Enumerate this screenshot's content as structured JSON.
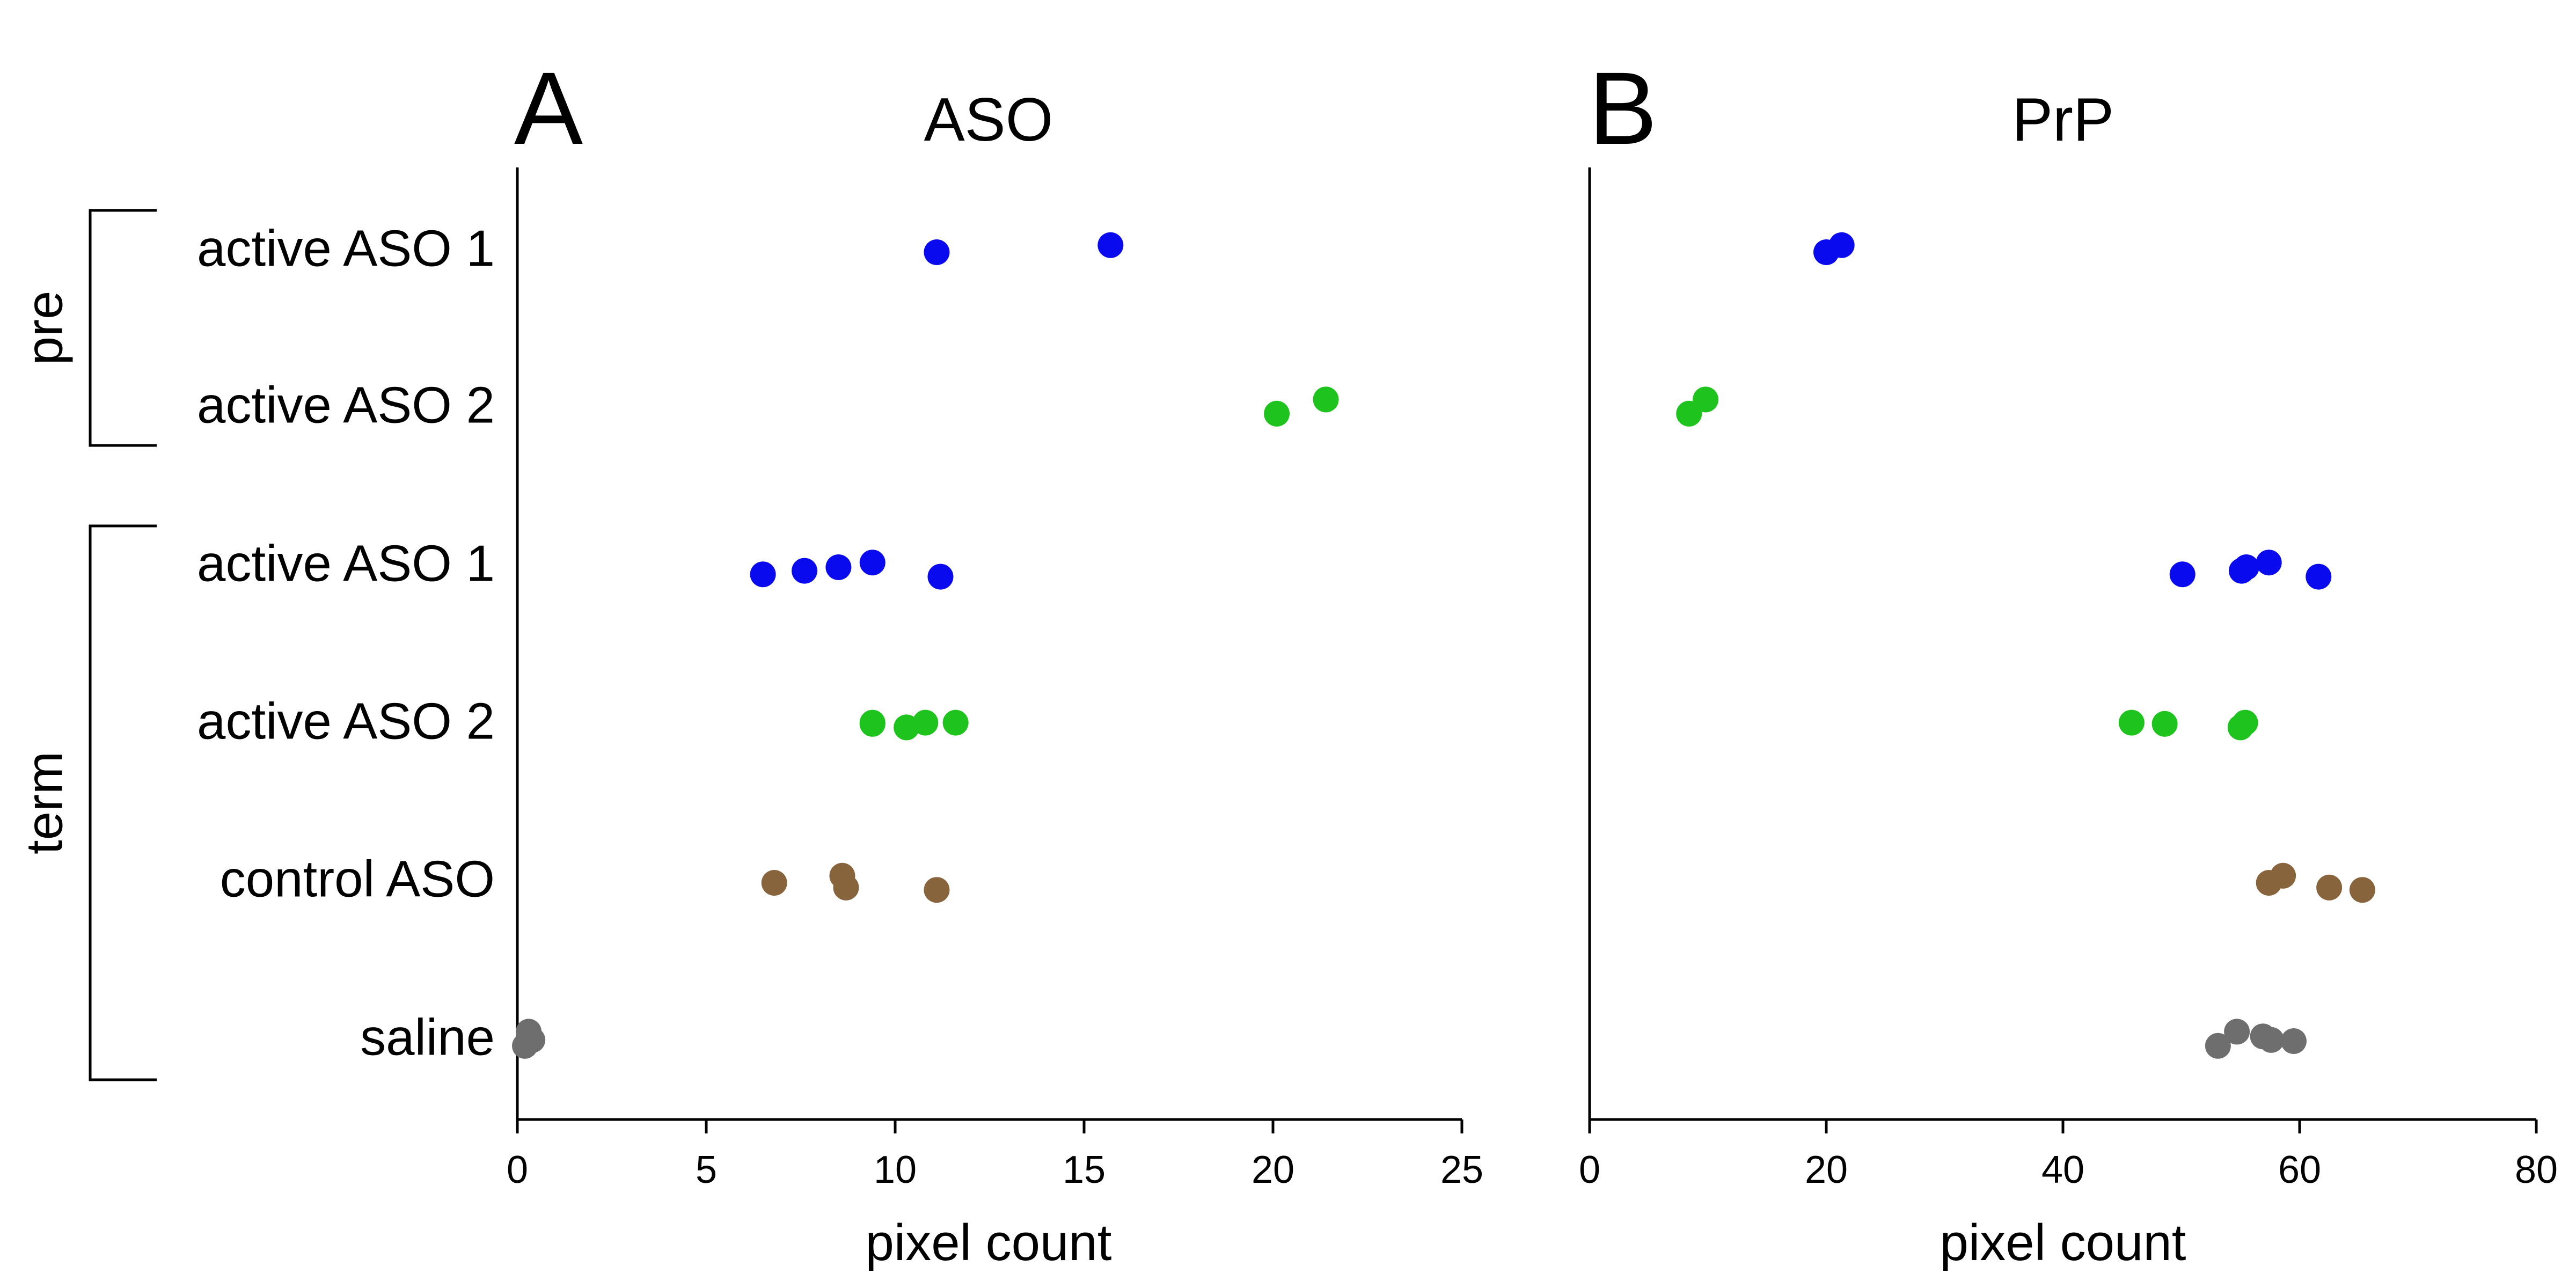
{
  "row_labels": [
    "active ASO 1",
    "active ASO 2",
    "active ASO 1",
    "active ASO 2",
    "control ASO",
    "saline"
  ],
  "groups": [
    {
      "label": "pre",
      "rows": [
        0,
        1
      ]
    },
    {
      "label": "term",
      "rows": [
        2,
        5
      ]
    }
  ],
  "colors": {
    "active ASO 1": "#0a0aee",
    "active ASO 2": "#1ec31e",
    "control ASO": "#88643c",
    "saline": "#6e6e6e"
  },
  "chart_data": [
    {
      "type": "scatter",
      "panel_letter": "A",
      "title": "ASO",
      "xlabel": "pixel count",
      "xlim": [
        0,
        25
      ],
      "xticks": [
        0,
        5,
        10,
        15,
        20,
        25
      ],
      "series": [
        {
          "row": 0,
          "name": "active ASO 1",
          "values": [
            11.1,
            15.7
          ]
        },
        {
          "row": 1,
          "name": "active ASO 2",
          "values": [
            20.1,
            21.4
          ]
        },
        {
          "row": 2,
          "name": "active ASO 1",
          "values": [
            6.5,
            7.6,
            8.5,
            9.4,
            11.2
          ]
        },
        {
          "row": 3,
          "name": "active ASO 2",
          "values": [
            9.4,
            9.4,
            10.3,
            10.8,
            11.6
          ]
        },
        {
          "row": 4,
          "name": "control ASO",
          "values": [
            6.8,
            8.6,
            8.7,
            11.1
          ]
        },
        {
          "row": 5,
          "name": "saline",
          "values": [
            0.2,
            0.3,
            0.3,
            0.4
          ]
        }
      ]
    },
    {
      "type": "scatter",
      "panel_letter": "B",
      "title": "PrP",
      "xlabel": "pixel count",
      "xlim": [
        0,
        80
      ],
      "xticks": [
        0,
        20,
        40,
        60,
        80
      ],
      "series": [
        {
          "row": 0,
          "name": "active ASO 1",
          "values": [
            20.0,
            21.3
          ]
        },
        {
          "row": 1,
          "name": "active ASO 2",
          "values": [
            8.4,
            9.8
          ]
        },
        {
          "row": 2,
          "name": "active ASO 1",
          "values": [
            50.1,
            55.1,
            55.5,
            57.4,
            61.6
          ]
        },
        {
          "row": 3,
          "name": "active ASO 2",
          "values": [
            45.8,
            48.6,
            55.0,
            55.4
          ]
        },
        {
          "row": 4,
          "name": "control ASO",
          "values": [
            57.4,
            58.6,
            62.5,
            65.3
          ]
        },
        {
          "row": 5,
          "name": "saline",
          "values": [
            53.1,
            54.7,
            56.9,
            57.6,
            59.5
          ]
        }
      ]
    }
  ]
}
